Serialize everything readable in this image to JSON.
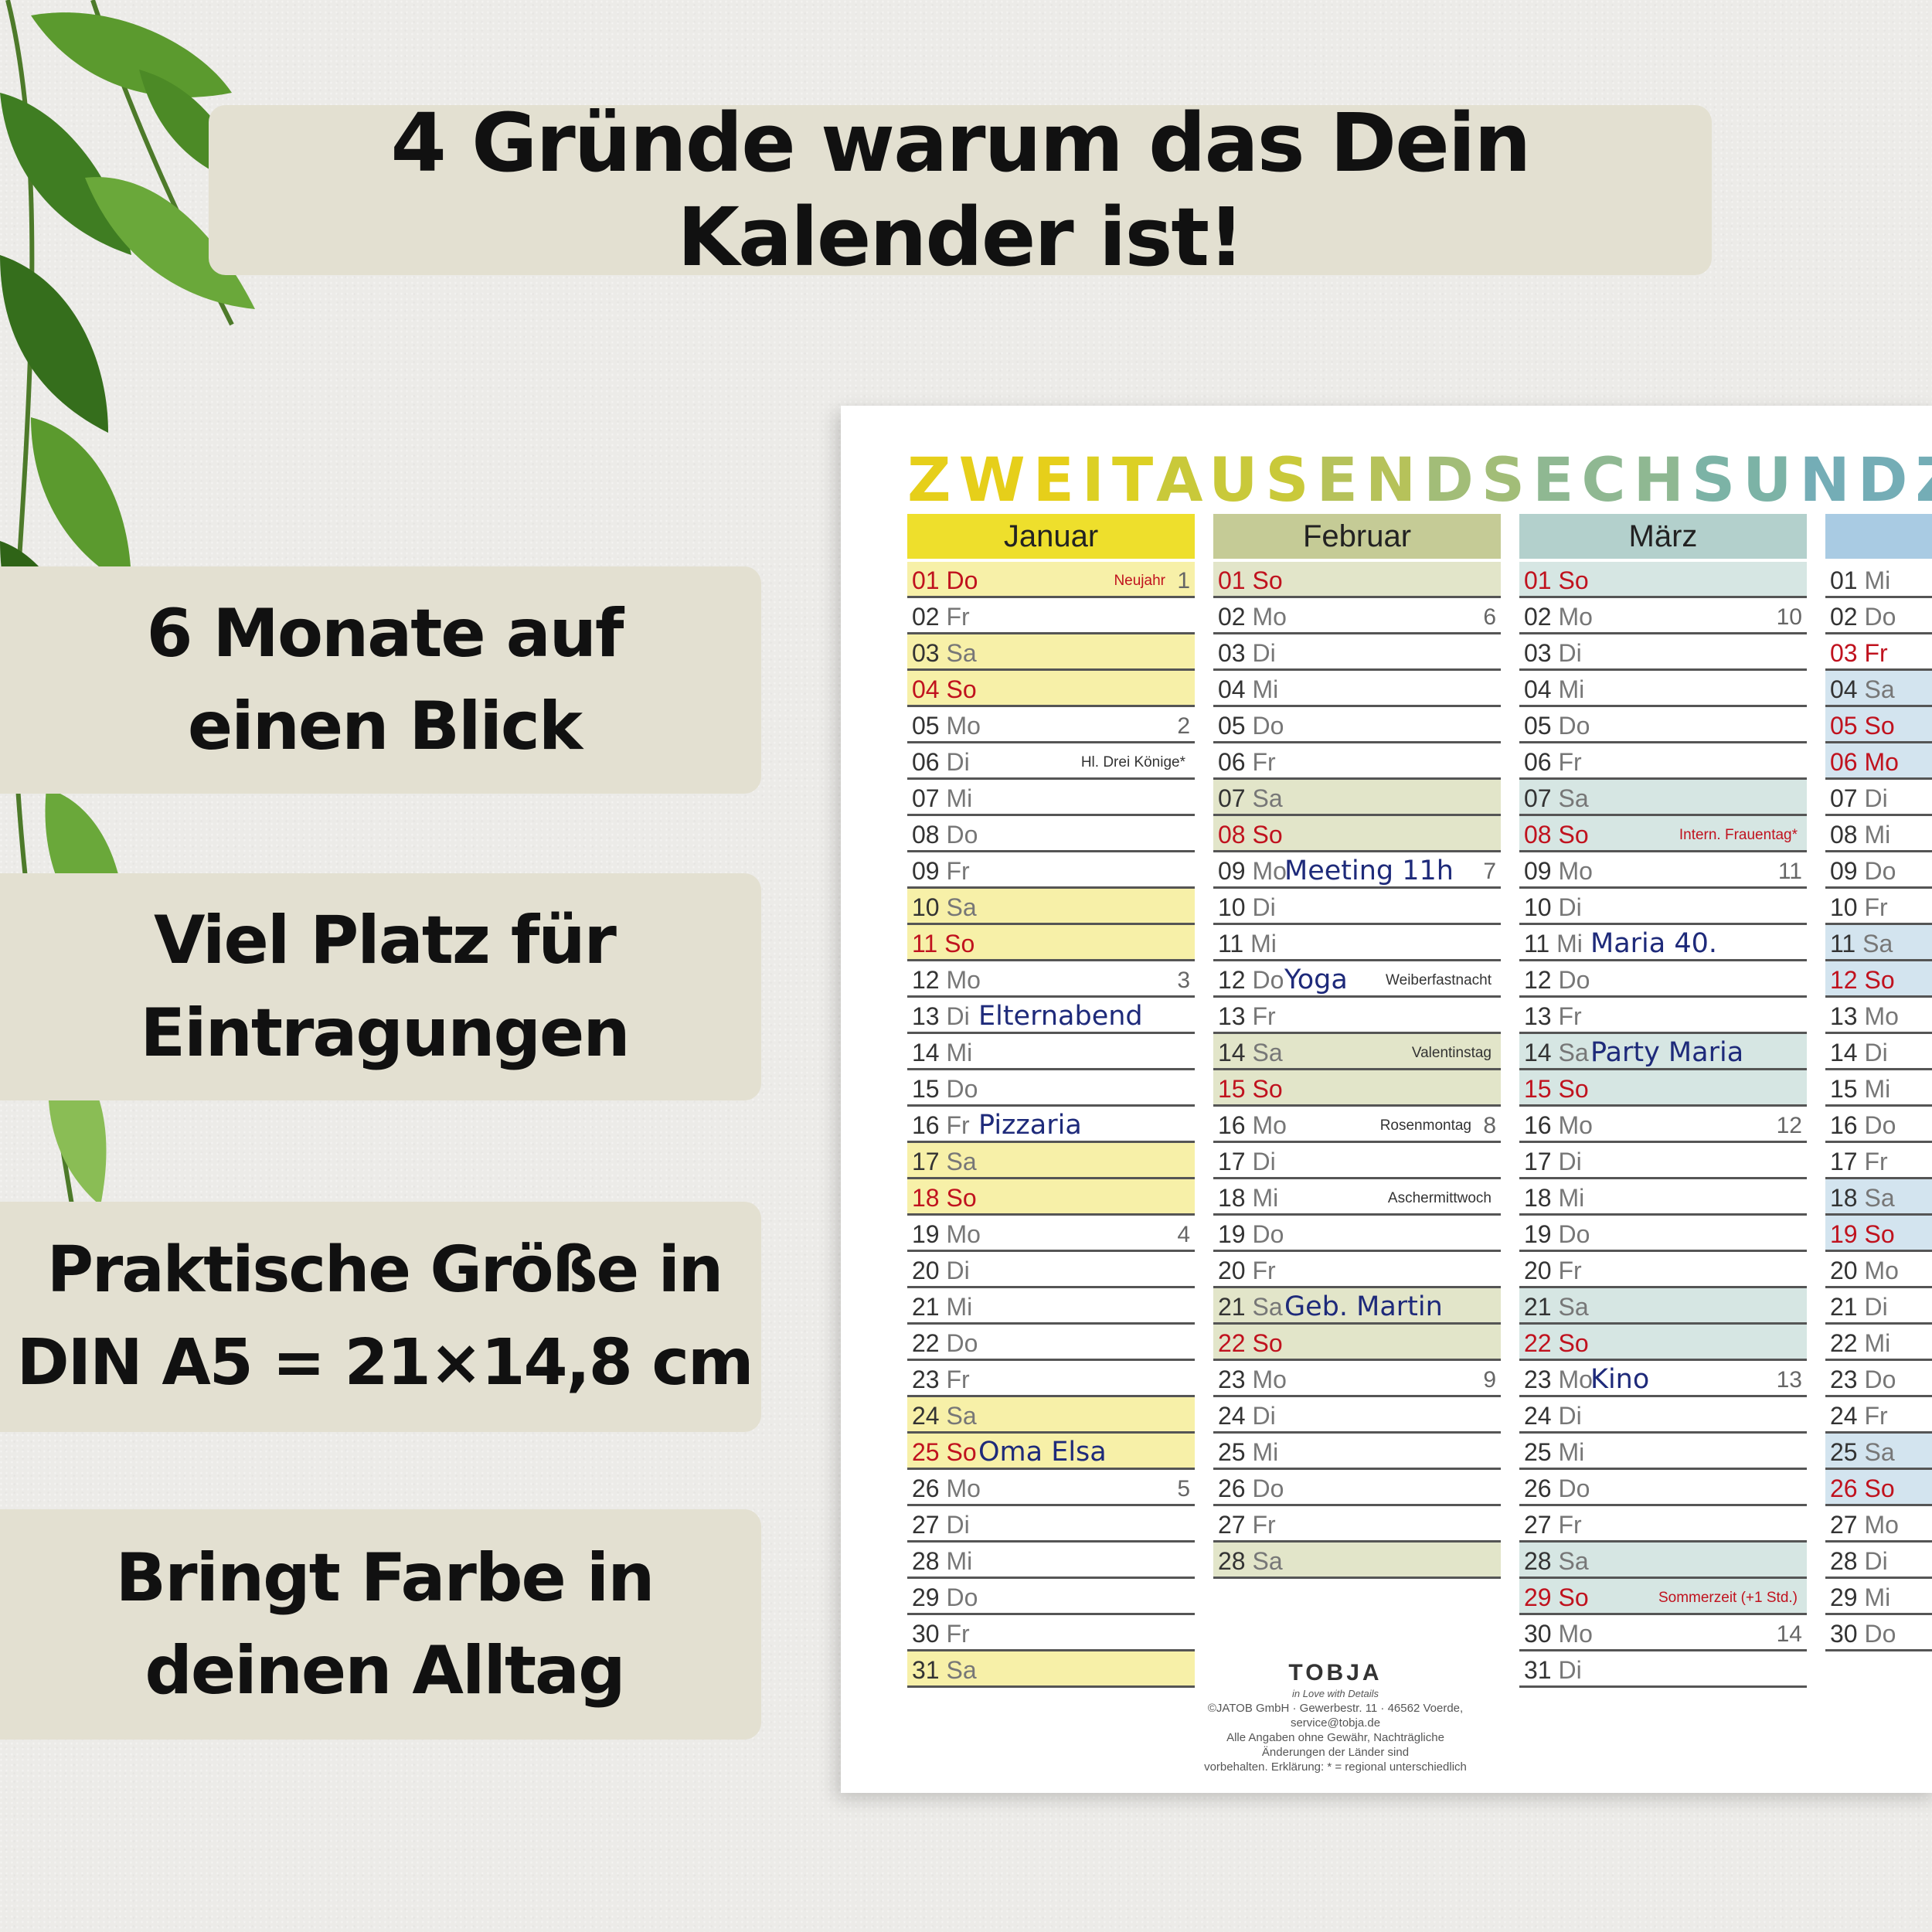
{
  "headline": "4 Gründe warum das Dein Kalender ist!",
  "reasons": [
    "6 Monate auf\neinen Blick",
    "Viel Platz für\nEintragungen",
    "Praktische Größe in\nDIN A5 = 21×14,8 cm",
    "Bringt Farbe in\ndeinen Alltag"
  ],
  "calendar": {
    "year_title": "ZWEITAUSENDSECHSUNDZWANZ",
    "year_colors": [
      "#e6cf1a",
      "#dcd023",
      "#c9c93a",
      "#b6c25a",
      "#a2bd78",
      "#8fb892",
      "#7cb3a6",
      "#74adb6",
      "#6fa7c2",
      "#6aa1cc"
    ],
    "months": [
      {
        "name": "Januar",
        "head_color": "#eedf2c",
        "shade": "#f7f0a8",
        "days": [
          {
            "d": "01",
            "wd": "Do",
            "shade": true,
            "red": true,
            "hol": "Neujahr",
            "wk": "1"
          },
          {
            "d": "02",
            "wd": "Fr"
          },
          {
            "d": "03",
            "wd": "Sa",
            "shade": true
          },
          {
            "d": "04",
            "wd": "So",
            "shade": true,
            "red": true
          },
          {
            "d": "05",
            "wd": "Mo",
            "wk": "2"
          },
          {
            "d": "06",
            "wd": "Di",
            "hol": "Hl. Drei Könige*"
          },
          {
            "d": "07",
            "wd": "Mi"
          },
          {
            "d": "08",
            "wd": "Do"
          },
          {
            "d": "09",
            "wd": "Fr"
          },
          {
            "d": "10",
            "wd": "Sa",
            "shade": true
          },
          {
            "d": "11",
            "wd": "So",
            "shade": true,
            "red": true
          },
          {
            "d": "12",
            "wd": "Mo",
            "wk": "3"
          },
          {
            "d": "13",
            "wd": "Di",
            "note": "Elternabend"
          },
          {
            "d": "14",
            "wd": "Mi"
          },
          {
            "d": "15",
            "wd": "Do"
          },
          {
            "d": "16",
            "wd": "Fr",
            "note": "Pizzaria"
          },
          {
            "d": "17",
            "wd": "Sa",
            "shade": true
          },
          {
            "d": "18",
            "wd": "So",
            "shade": true,
            "red": true
          },
          {
            "d": "19",
            "wd": "Mo",
            "wk": "4"
          },
          {
            "d": "20",
            "wd": "Di"
          },
          {
            "d": "21",
            "wd": "Mi"
          },
          {
            "d": "22",
            "wd": "Do"
          },
          {
            "d": "23",
            "wd": "Fr"
          },
          {
            "d": "24",
            "wd": "Sa",
            "shade": true
          },
          {
            "d": "25",
            "wd": "So",
            "shade": true,
            "red": true,
            "note": "Oma Elsa"
          },
          {
            "d": "26",
            "wd": "Mo",
            "wk": "5"
          },
          {
            "d": "27",
            "wd": "Di"
          },
          {
            "d": "28",
            "wd": "Mi"
          },
          {
            "d": "29",
            "wd": "Do"
          },
          {
            "d": "30",
            "wd": "Fr"
          },
          {
            "d": "31",
            "wd": "Sa",
            "shade": true
          }
        ]
      },
      {
        "name": "Februar",
        "head_color": "#c5cb96",
        "shade": "#e2e5c9",
        "days": [
          {
            "d": "01",
            "wd": "So",
            "shade": true,
            "red": true
          },
          {
            "d": "02",
            "wd": "Mo",
            "wk": "6"
          },
          {
            "d": "03",
            "wd": "Di"
          },
          {
            "d": "04",
            "wd": "Mi"
          },
          {
            "d": "05",
            "wd": "Do"
          },
          {
            "d": "06",
            "wd": "Fr"
          },
          {
            "d": "07",
            "wd": "Sa",
            "shade": true
          },
          {
            "d": "08",
            "wd": "So",
            "shade": true,
            "red": true
          },
          {
            "d": "09",
            "wd": "Mo",
            "note": "Meeting 11h",
            "wk": "7"
          },
          {
            "d": "10",
            "wd": "Di"
          },
          {
            "d": "11",
            "wd": "Mi"
          },
          {
            "d": "12",
            "wd": "Do",
            "note": "Yoga",
            "hol": "Weiberfastnacht"
          },
          {
            "d": "13",
            "wd": "Fr"
          },
          {
            "d": "14",
            "wd": "Sa",
            "shade": true,
            "hol": "Valentinstag"
          },
          {
            "d": "15",
            "wd": "So",
            "shade": true,
            "red": true
          },
          {
            "d": "16",
            "wd": "Mo",
            "hol": "Rosenmontag",
            "wk": "8"
          },
          {
            "d": "17",
            "wd": "Di"
          },
          {
            "d": "18",
            "wd": "Mi",
            "hol": "Aschermittwoch"
          },
          {
            "d": "19",
            "wd": "Do"
          },
          {
            "d": "20",
            "wd": "Fr"
          },
          {
            "d": "21",
            "wd": "Sa",
            "shade": true,
            "note": "Geb. Martin"
          },
          {
            "d": "22",
            "wd": "So",
            "shade": true,
            "red": true
          },
          {
            "d": "23",
            "wd": "Mo",
            "wk": "9"
          },
          {
            "d": "24",
            "wd": "Di"
          },
          {
            "d": "25",
            "wd": "Mi"
          },
          {
            "d": "26",
            "wd": "Do"
          },
          {
            "d": "27",
            "wd": "Fr"
          },
          {
            "d": "28",
            "wd": "Sa",
            "shade": true
          }
        ]
      },
      {
        "name": "März",
        "head_color": "#b3d0cc",
        "shade": "#d6e6e3",
        "days": [
          {
            "d": "01",
            "wd": "So",
            "shade": true,
            "red": true
          },
          {
            "d": "02",
            "wd": "Mo",
            "wk": "10"
          },
          {
            "d": "03",
            "wd": "Di"
          },
          {
            "d": "04",
            "wd": "Mi"
          },
          {
            "d": "05",
            "wd": "Do"
          },
          {
            "d": "06",
            "wd": "Fr"
          },
          {
            "d": "07",
            "wd": "Sa",
            "shade": true
          },
          {
            "d": "08",
            "wd": "So",
            "shade": true,
            "red": true,
            "hol": "Intern. Frauentag*"
          },
          {
            "d": "09",
            "wd": "Mo",
            "wk": "11"
          },
          {
            "d": "10",
            "wd": "Di"
          },
          {
            "d": "11",
            "wd": "Mi",
            "note": "Maria 40."
          },
          {
            "d": "12",
            "wd": "Do"
          },
          {
            "d": "13",
            "wd": "Fr"
          },
          {
            "d": "14",
            "wd": "Sa",
            "shade": true,
            "note": "Party Maria"
          },
          {
            "d": "15",
            "wd": "So",
            "shade": true,
            "red": true
          },
          {
            "d": "16",
            "wd": "Mo",
            "wk": "12"
          },
          {
            "d": "17",
            "wd": "Di"
          },
          {
            "d": "18",
            "wd": "Mi"
          },
          {
            "d": "19",
            "wd": "Do"
          },
          {
            "d": "20",
            "wd": "Fr"
          },
          {
            "d": "21",
            "wd": "Sa",
            "shade": true
          },
          {
            "d": "22",
            "wd": "So",
            "shade": true,
            "red": true
          },
          {
            "d": "23",
            "wd": "Mo",
            "note": "Kino",
            "wk": "13"
          },
          {
            "d": "24",
            "wd": "Di"
          },
          {
            "d": "25",
            "wd": "Mi"
          },
          {
            "d": "26",
            "wd": "Do"
          },
          {
            "d": "27",
            "wd": "Fr"
          },
          {
            "d": "28",
            "wd": "Sa",
            "shade": true
          },
          {
            "d": "29",
            "wd": "So",
            "shade": true,
            "red": true,
            "hol": "Sommerzeit (+1 Std.)"
          },
          {
            "d": "30",
            "wd": "Mo",
            "wk": "14"
          },
          {
            "d": "31",
            "wd": "Di"
          }
        ]
      },
      {
        "name": "",
        "head_color": "#a9cbe3",
        "shade": "#d3e4ef",
        "days": [
          {
            "d": "01",
            "wd": "Mi"
          },
          {
            "d": "02",
            "wd": "Do"
          },
          {
            "d": "03",
            "wd": "Fr",
            "red": true
          },
          {
            "d": "04",
            "wd": "Sa",
            "shade": true
          },
          {
            "d": "05",
            "wd": "So",
            "shade": true,
            "red": true
          },
          {
            "d": "06",
            "wd": "Mo",
            "shade": true,
            "red": true
          },
          {
            "d": "07",
            "wd": "Di"
          },
          {
            "d": "08",
            "wd": "Mi"
          },
          {
            "d": "09",
            "wd": "Do"
          },
          {
            "d": "10",
            "wd": "Fr"
          },
          {
            "d": "11",
            "wd": "Sa",
            "shade": true
          },
          {
            "d": "12",
            "wd": "So",
            "shade": true,
            "red": true
          },
          {
            "d": "13",
            "wd": "Mo"
          },
          {
            "d": "14",
            "wd": "Di"
          },
          {
            "d": "15",
            "wd": "Mi"
          },
          {
            "d": "16",
            "wd": "Do"
          },
          {
            "d": "17",
            "wd": "Fr"
          },
          {
            "d": "18",
            "wd": "Sa",
            "shade": true
          },
          {
            "d": "19",
            "wd": "So",
            "shade": true,
            "red": true
          },
          {
            "d": "20",
            "wd": "Mo"
          },
          {
            "d": "21",
            "wd": "Di"
          },
          {
            "d": "22",
            "wd": "Mi"
          },
          {
            "d": "23",
            "wd": "Do"
          },
          {
            "d": "24",
            "wd": "Fr"
          },
          {
            "d": "25",
            "wd": "Sa",
            "shade": true
          },
          {
            "d": "26",
            "wd": "So",
            "shade": true,
            "red": true
          },
          {
            "d": "27",
            "wd": "Mo"
          },
          {
            "d": "28",
            "wd": "Di"
          },
          {
            "d": "29",
            "wd": "Mi"
          },
          {
            "d": "30",
            "wd": "Do"
          }
        ]
      }
    ],
    "logo_name": "TOBJA",
    "logo_tagline": "in Love with Details",
    "footer_lines": [
      "©JATOB GmbH · Gewerbestr. 11 · 46562 Voerde, service@tobja.de",
      "Alle Angaben ohne Gewähr, Nachträgliche Änderungen der Länder sind",
      "vorbehalten. Erklärung: * = regional unterschiedlich"
    ]
  }
}
